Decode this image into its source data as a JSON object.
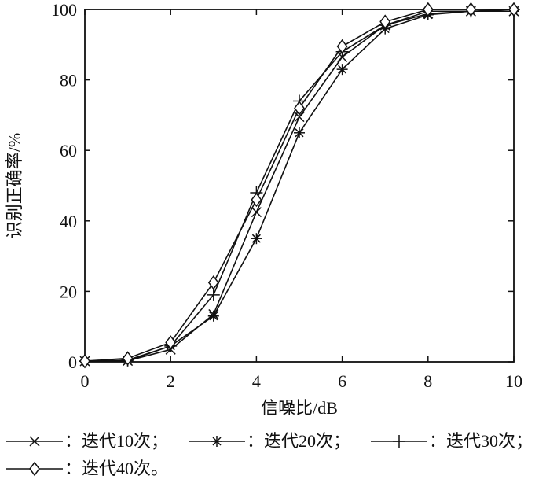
{
  "chart_data": {
    "type": "line",
    "xlabel": "信噪比/dB",
    "ylabel": "识别正确率/%",
    "xlim": [
      0,
      10
    ],
    "ylim": [
      0,
      100
    ],
    "x_ticks": [
      "0",
      "2",
      "4",
      "6",
      "8",
      "10"
    ],
    "y_ticks": [
      "0",
      "20",
      "40",
      "60",
      "80",
      "100"
    ],
    "grid": false,
    "legend_position": "bottom",
    "x": [
      0,
      1,
      2,
      3,
      4,
      5,
      6,
      7,
      8,
      9,
      10
    ],
    "series": [
      {
        "name": "：迭代10次；",
        "marker": "x",
        "values": [
          0.2,
          0.3,
          3.5,
          13.5,
          42.5,
          69.5,
          86.5,
          95.5,
          98.8,
          99.5,
          99.5
        ]
      },
      {
        "name": "：迭代20次；",
        "marker": "asterisk",
        "values": [
          0.2,
          0.3,
          4.5,
          13.0,
          35.0,
          65.0,
          83.0,
          94.5,
          98.5,
          99.5,
          99.5
        ]
      },
      {
        "name": "：迭代30次；",
        "marker": "plus",
        "values": [
          0.2,
          0.5,
          4.5,
          19.0,
          48.0,
          74.0,
          88.0,
          95.5,
          99.5,
          99.5,
          100
        ]
      },
      {
        "name": "：迭代40次。",
        "marker": "diamond",
        "values": [
          0.2,
          1.0,
          5.5,
          22.5,
          46.0,
          72.0,
          89.5,
          96.5,
          100,
          100,
          100
        ]
      }
    ],
    "colors": {
      "line": "#111111",
      "background": "#ffffff"
    }
  }
}
